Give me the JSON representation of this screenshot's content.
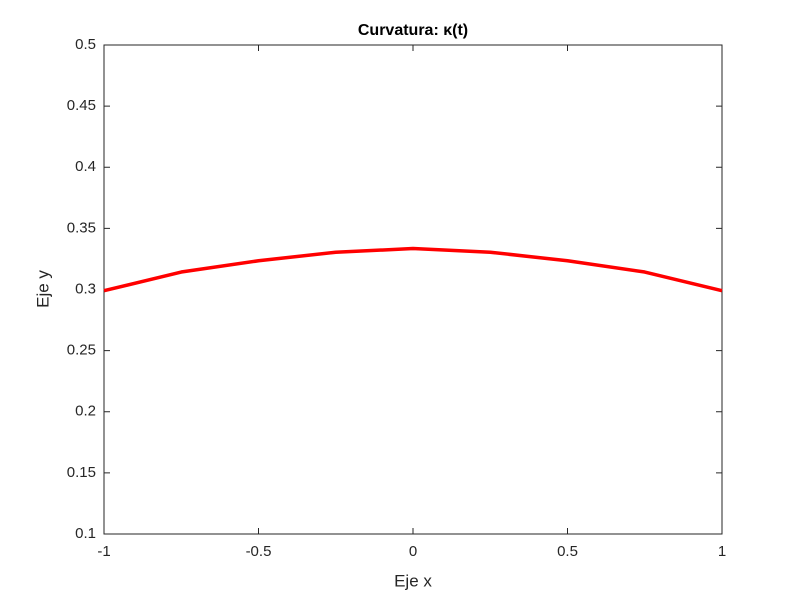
{
  "chart_data": {
    "type": "line",
    "title": "Curvatura: κ(t)",
    "xlabel": "Eje x",
    "ylabel": "Eje y",
    "x": [
      -1,
      -0.75,
      -0.5,
      -0.25,
      0,
      0.25,
      0.5,
      0.75,
      1
    ],
    "series": [
      {
        "name": "κ(t)",
        "color": "#ff0000",
        "values": [
          0.299,
          0.3143,
          0.3235,
          0.3305,
          0.3335,
          0.3305,
          0.3235,
          0.3143,
          0.299
        ]
      }
    ],
    "xlim": [
      -1,
      1
    ],
    "xticks": [
      -1,
      -0.5,
      0,
      0.5,
      1
    ],
    "ylim": [
      0.1,
      0.5
    ],
    "yticks": [
      0.1,
      0.15,
      0.2,
      0.25,
      0.3,
      0.35,
      0.4,
      0.45,
      0.5
    ]
  }
}
